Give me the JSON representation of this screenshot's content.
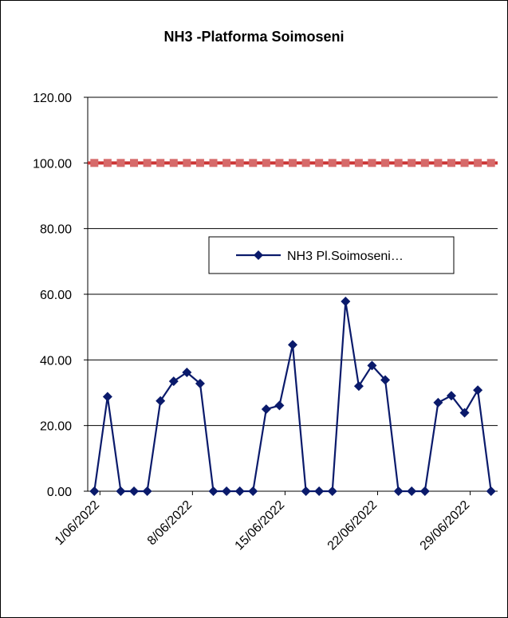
{
  "chart_data": {
    "type": "line",
    "title": "NH3 -Platforma Soimoseni",
    "xlabel": "",
    "ylabel": "",
    "ylim": [
      0,
      120
    ],
    "ytick_labels": [
      "0.00",
      "20.00",
      "40.00",
      "60.00",
      "80.00",
      "100.00",
      "120.00"
    ],
    "x_tick_labels": [
      "1/06/2022",
      "8/06/2022",
      "15/06/2022",
      "22/06/2022",
      "29/06/2022"
    ],
    "x": [
      "1/06/2022",
      "2/06/2022",
      "3/06/2022",
      "4/06/2022",
      "5/06/2022",
      "6/06/2022",
      "7/06/2022",
      "8/06/2022",
      "9/06/2022",
      "10/06/2022",
      "11/06/2022",
      "12/06/2022",
      "13/06/2022",
      "14/06/2022",
      "15/06/2022",
      "16/06/2022",
      "17/06/2022",
      "18/06/2022",
      "19/06/2022",
      "20/06/2022",
      "21/06/2022",
      "22/06/2022",
      "23/06/2022",
      "24/06/2022",
      "25/06/2022",
      "26/06/2022",
      "27/06/2022",
      "28/06/2022",
      "29/06/2022",
      "30/06/2022",
      "1/07/2022"
    ],
    "grid": true,
    "legend_position": "center-right",
    "series": [
      {
        "name": "NH3 Pl.Soimoseni…",
        "color": "#0a1a6b",
        "marker": "diamond",
        "values": [
          0.0,
          28.8,
          0.0,
          0.0,
          0.0,
          27.5,
          33.5,
          36.2,
          32.8,
          0.0,
          0.0,
          0.0,
          0.0,
          25.0,
          26.1,
          44.6,
          0.0,
          0.0,
          0.0,
          57.8,
          32.0,
          38.3,
          33.9,
          0.0,
          0.0,
          0.0,
          27.0,
          29.1,
          23.9,
          30.8,
          0.0
        ]
      }
    ],
    "reference_line": {
      "value": 100,
      "color": "#cc3333",
      "marker_color": "#d66a6a",
      "marker": "square"
    }
  }
}
